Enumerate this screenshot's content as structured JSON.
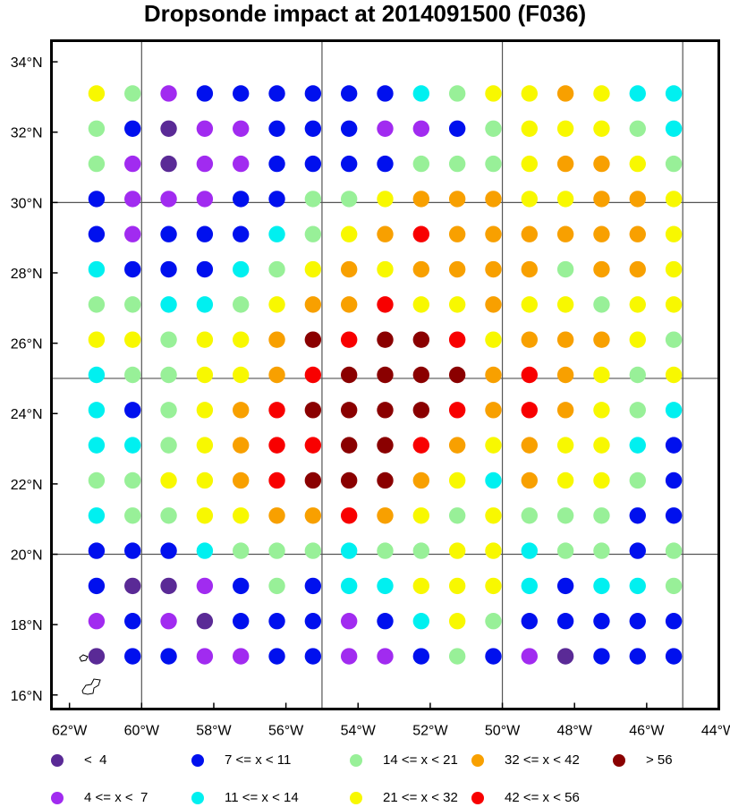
{
  "title": "Dropsonde impact at 2014091500 (F036)",
  "colors": {
    "lt4": "#5a2a96",
    "4to7": "#a12bf0",
    "7to11": "#0010ee",
    "11to14": "#00f0f0",
    "14to21": "#98f098",
    "21to32": "#f8f800",
    "32to42": "#f8a000",
    "42to56": "#f80000",
    "gt56": "#8a0000",
    "grid": "#555555",
    "frame": "#000000",
    "coast": "#000000"
  },
  "legend": [
    {
      "key": "lt4",
      "label": "<  4"
    },
    {
      "key": "7to11",
      "label": "7 <= x < 11"
    },
    {
      "key": "14to21",
      "label": "14 <= x < 21"
    },
    {
      "key": "32to42",
      "label": "32 <= x < 42"
    },
    {
      "key": "gt56",
      "label": "> 56"
    },
    {
      "key": "4to7",
      "label": "4 <= x <  7"
    },
    {
      "key": "11to14",
      "label": "11 <= x < 14"
    },
    {
      "key": "21to32",
      "label": "21 <= x < 32"
    },
    {
      "key": "42to56",
      "label": "42 <= x < 56"
    }
  ],
  "chart_data": {
    "type": "scatter",
    "title": "Dropsonde impact at 2014091500 (F036)",
    "xlim": [
      -62.5,
      -44
    ],
    "ylim": [
      15.6,
      34.6
    ],
    "x_ticks": [
      -62,
      -60,
      -58,
      -56,
      -54,
      -52,
      -50,
      -48,
      -46,
      -44
    ],
    "x_tick_labels": [
      "62°W",
      "60°W",
      "58°W",
      "56°W",
      "54°W",
      "52°W",
      "50°W",
      "48°W",
      "46°W",
      "44°W"
    ],
    "y_ticks": [
      16,
      18,
      20,
      22,
      24,
      26,
      28,
      30,
      32,
      34
    ],
    "y_tick_labels": [
      "16°N",
      "18°N",
      "20°N",
      "22°N",
      "24°N",
      "26°N",
      "28°N",
      "30°N",
      "32°N",
      "34°N"
    ],
    "grid_lon": [
      -60,
      -55,
      -50,
      -45
    ],
    "grid_lat": [
      20,
      25,
      30
    ],
    "lons": [
      -61.25,
      -60.25,
      -59.25,
      -58.25,
      -57.25,
      -56.25,
      -55.25,
      -54.25,
      -53.25,
      -52.25,
      -51.25,
      -50.25,
      -49.25,
      -48.25,
      -47.25,
      -46.25,
      -45.25
    ],
    "lats": [
      33.1,
      32.1,
      31.1,
      30.1,
      29.1,
      28.1,
      27.1,
      26.1,
      25.1,
      24.1,
      23.1,
      22.1,
      21.1,
      20.1,
      19.1,
      18.1,
      17.1
    ],
    "categories": [
      "lt4",
      "4to7",
      "7to11",
      "11to14",
      "14to21",
      "21to32",
      "32to42",
      "42to56",
      "gt56"
    ],
    "category_grid_note": "rows top (north) to bottom; cells are category indices 0..8 from categories",
    "cells": [
      [
        5,
        4,
        1,
        2,
        2,
        2,
        2,
        2,
        2,
        3,
        4,
        5,
        5,
        6,
        5,
        3,
        3
      ],
      [
        4,
        2,
        0,
        1,
        1,
        2,
        2,
        2,
        1,
        1,
        2,
        4,
        5,
        5,
        5,
        4,
        3
      ],
      [
        4,
        1,
        0,
        1,
        1,
        2,
        2,
        2,
        2,
        4,
        4,
        4,
        5,
        6,
        6,
        5,
        4
      ],
      [
        2,
        1,
        1,
        1,
        2,
        2,
        4,
        4,
        5,
        6,
        6,
        6,
        5,
        5,
        6,
        6,
        5
      ],
      [
        2,
        1,
        2,
        2,
        2,
        3,
        4,
        5,
        6,
        7,
        6,
        6,
        6,
        6,
        6,
        6,
        5
      ],
      [
        3,
        2,
        2,
        2,
        3,
        4,
        5,
        6,
        5,
        6,
        6,
        6,
        6,
        4,
        6,
        6,
        5
      ],
      [
        4,
        4,
        3,
        3,
        4,
        5,
        6,
        6,
        7,
        5,
        5,
        6,
        5,
        5,
        4,
        5,
        5
      ],
      [
        5,
        5,
        4,
        5,
        5,
        6,
        8,
        7,
        8,
        8,
        7,
        5,
        6,
        6,
        6,
        5,
        4
      ],
      [
        3,
        4,
        4,
        5,
        5,
        6,
        7,
        8,
        8,
        8,
        8,
        6,
        7,
        6,
        5,
        4,
        5
      ],
      [
        3,
        2,
        4,
        5,
        6,
        7,
        8,
        8,
        8,
        8,
        7,
        6,
        7,
        6,
        5,
        4,
        3
      ],
      [
        3,
        3,
        4,
        5,
        6,
        7,
        7,
        8,
        8,
        7,
        6,
        5,
        6,
        5,
        5,
        3,
        2
      ],
      [
        4,
        4,
        5,
        5,
        6,
        7,
        8,
        8,
        8,
        6,
        5,
        3,
        6,
        5,
        5,
        4,
        2
      ],
      [
        3,
        4,
        4,
        5,
        5,
        6,
        6,
        7,
        6,
        5,
        4,
        5,
        4,
        4,
        4,
        2,
        2
      ],
      [
        2,
        2,
        2,
        3,
        4,
        4,
        4,
        3,
        4,
        4,
        5,
        5,
        3,
        4,
        4,
        2,
        4
      ],
      [
        2,
        0,
        0,
        1,
        2,
        4,
        2,
        3,
        3,
        5,
        5,
        5,
        3,
        2,
        3,
        3,
        4
      ],
      [
        1,
        2,
        1,
        0,
        2,
        2,
        2,
        1,
        2,
        3,
        5,
        4,
        2,
        2,
        2,
        2,
        2
      ],
      [
        0,
        2,
        2,
        1,
        1,
        2,
        2,
        1,
        1,
        2,
        4,
        2,
        1,
        0,
        2,
        2,
        2
      ]
    ]
  }
}
